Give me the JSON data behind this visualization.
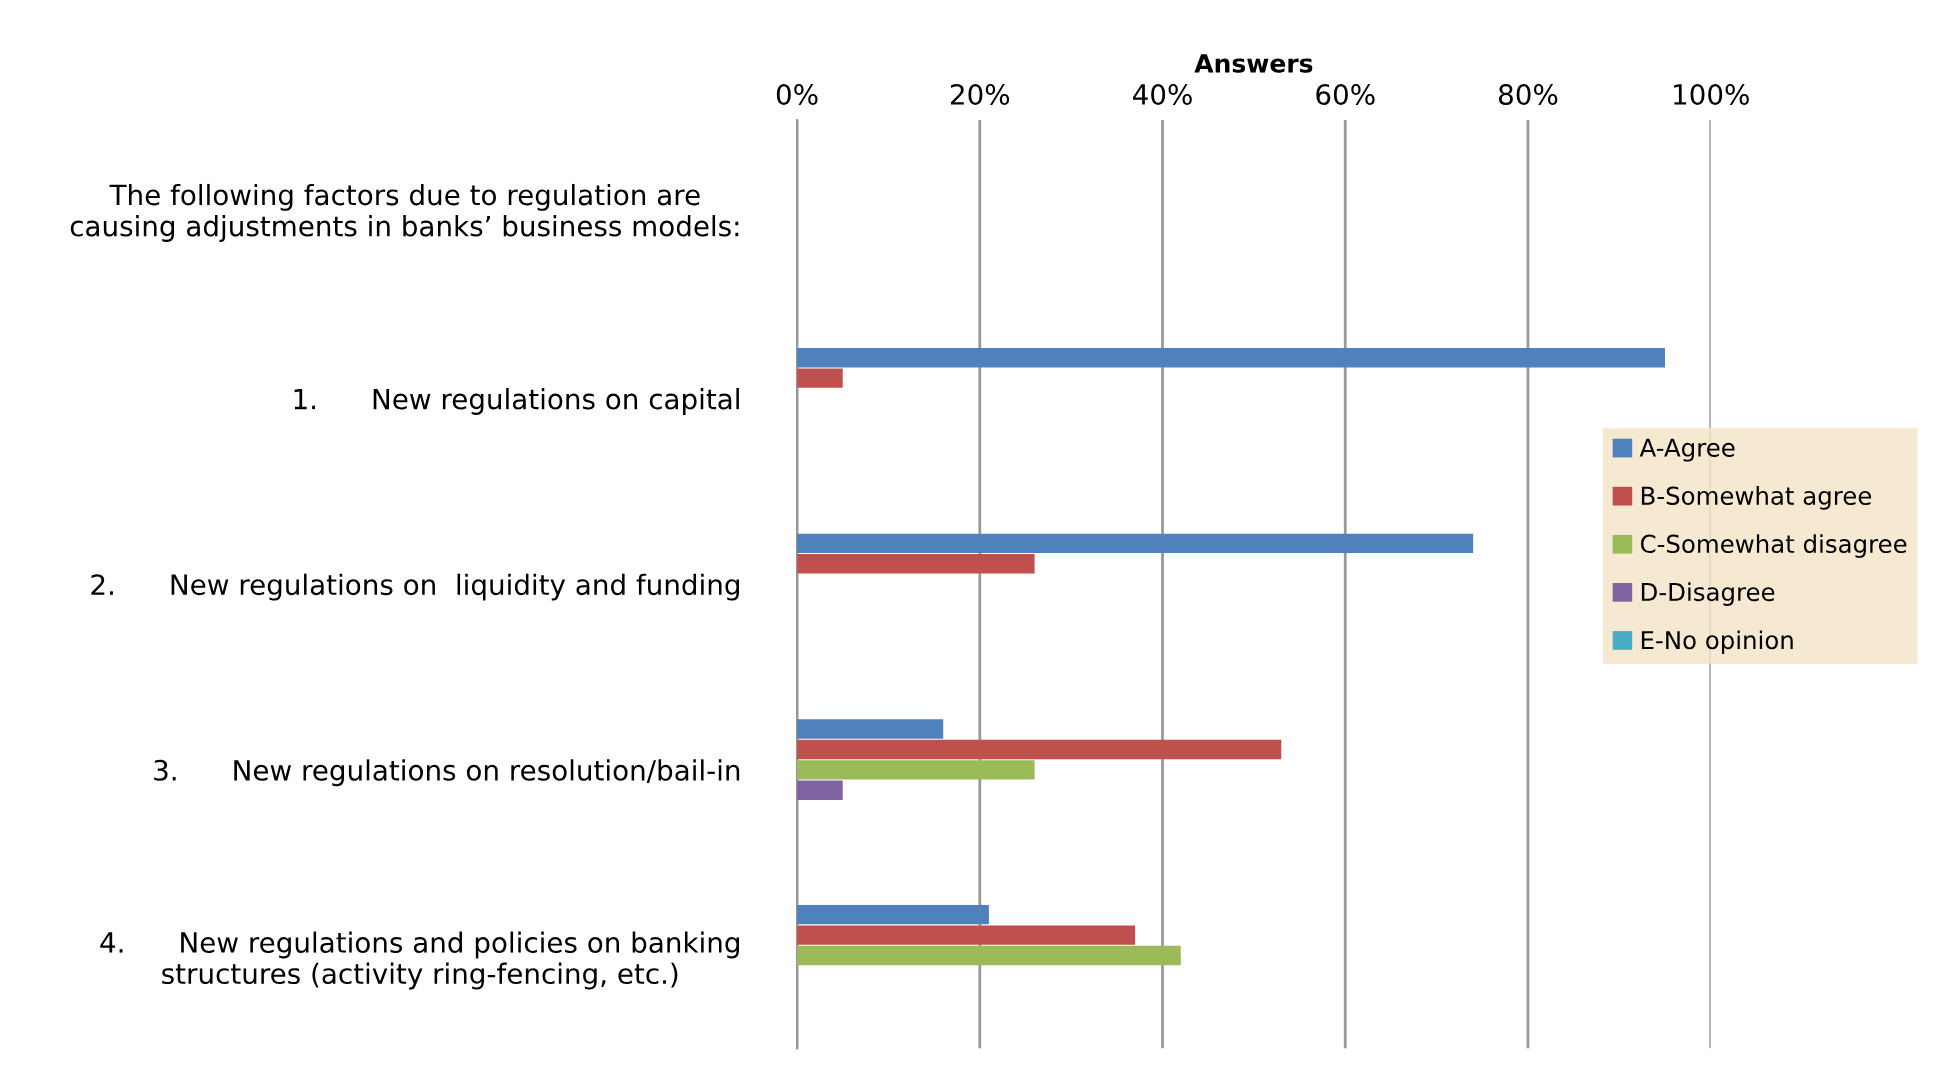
{
  "chart_data": {
    "type": "bar",
    "orientation": "horizontal",
    "xlabel": "Answers",
    "annotations": [
      "The following factors due to regulation are\ncausing adjustments in banks’ business models:"
    ],
    "categories": [
      null,
      "1.      New regulations on capital",
      "2.      New regulations on  liquidity and funding",
      "3.      New regulations on resolution/bail-in",
      "4.      New regulations and policies on banking\nstructures (activity ring-fencing, etc.)"
    ],
    "series": [
      {
        "name": "A-Agree",
        "color": "#4f81bd",
        "values": [
          null,
          95,
          74,
          16,
          21
        ]
      },
      {
        "name": "B-Somewhat agree",
        "color": "#c0504d",
        "values": [
          null,
          5,
          26,
          53,
          37
        ]
      },
      {
        "name": "C-Somewhat disagree",
        "color": "#9bbb59",
        "values": [
          null,
          null,
          null,
          26,
          42
        ]
      },
      {
        "name": "D-Disagree",
        "color": "#8064a2",
        "values": [
          null,
          null,
          null,
          5,
          null
        ]
      },
      {
        "name": "E-No opinion",
        "color": "#4bacc6",
        "values": [
          null,
          null,
          null,
          null,
          null
        ]
      }
    ],
    "xlim": [
      0,
      100
    ],
    "xticks": [
      {
        "value": 0,
        "label": "0%"
      },
      {
        "value": 20,
        "label": "20%"
      },
      {
        "value": 40,
        "label": "40%"
      },
      {
        "value": 60,
        "label": "60%"
      },
      {
        "value": 80,
        "label": "80%"
      },
      {
        "value": 100,
        "label": "100%"
      }
    ],
    "grid": "x",
    "legend": "right"
  }
}
